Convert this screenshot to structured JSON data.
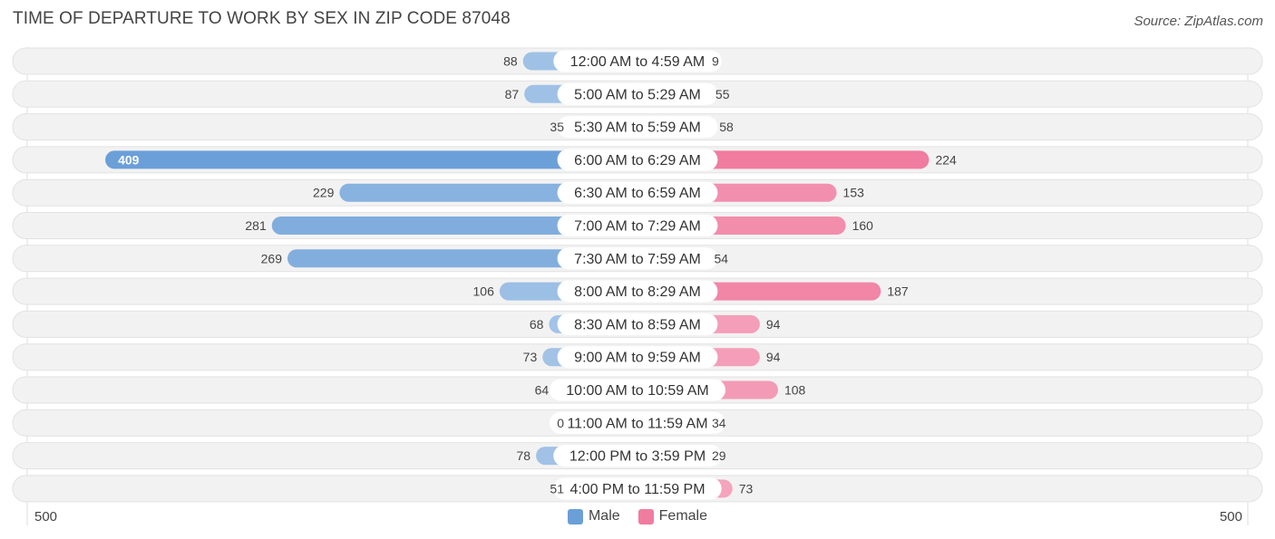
{
  "title": "TIME OF DEPARTURE TO WORK BY SEX IN ZIP CODE 87048",
  "source": "Source: ZipAtlas.com",
  "axis": {
    "left_label": "500",
    "right_label": "500"
  },
  "legend": {
    "male_label": "Male",
    "female_label": "Female",
    "male_color": "#6b9fd8",
    "female_color": "#f07ca0"
  },
  "chart_data": {
    "type": "bar",
    "orientation": "horizontal-diverging",
    "title": "TIME OF DEPARTURE TO WORK BY SEX IN ZIP CODE 87048",
    "xlim": [
      -500,
      500
    ],
    "categories": [
      "12:00 AM to 4:59 AM",
      "5:00 AM to 5:29 AM",
      "5:30 AM to 5:59 AM",
      "6:00 AM to 6:29 AM",
      "6:30 AM to 6:59 AM",
      "7:00 AM to 7:29 AM",
      "7:30 AM to 7:59 AM",
      "8:00 AM to 8:29 AM",
      "8:30 AM to 8:59 AM",
      "9:00 AM to 9:59 AM",
      "10:00 AM to 10:59 AM",
      "11:00 AM to 11:59 AM",
      "12:00 PM to 3:59 PM",
      "4:00 PM to 11:59 PM"
    ],
    "series": [
      {
        "name": "Male",
        "color": "#6b9fd8",
        "values": [
          88,
          87,
          35,
          409,
          229,
          281,
          269,
          106,
          68,
          73,
          64,
          0,
          78,
          51
        ]
      },
      {
        "name": "Female",
        "color": "#f07ca0",
        "values": [
          9,
          55,
          58,
          224,
          153,
          160,
          54,
          187,
          94,
          94,
          108,
          34,
          29,
          73
        ]
      }
    ],
    "legend_position": "bottom-center"
  }
}
